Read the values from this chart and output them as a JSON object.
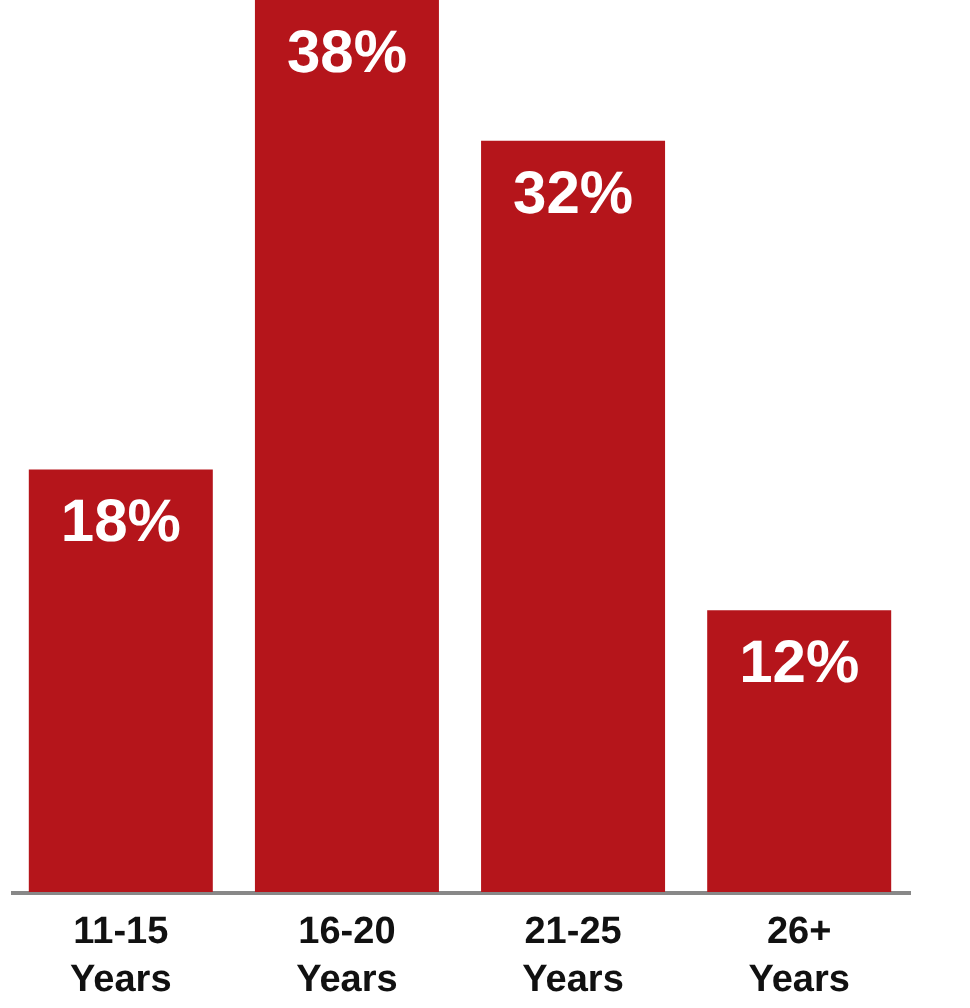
{
  "chart_data": {
    "type": "bar",
    "categories": [
      "11-15 Years",
      "16-20 Years",
      "21-25 Years",
      "26+ Years"
    ],
    "values": [
      18,
      38,
      32,
      12
    ],
    "value_labels": [
      "18%",
      "38%",
      "32%",
      "12%"
    ],
    "color": "#b5151b"
  }
}
